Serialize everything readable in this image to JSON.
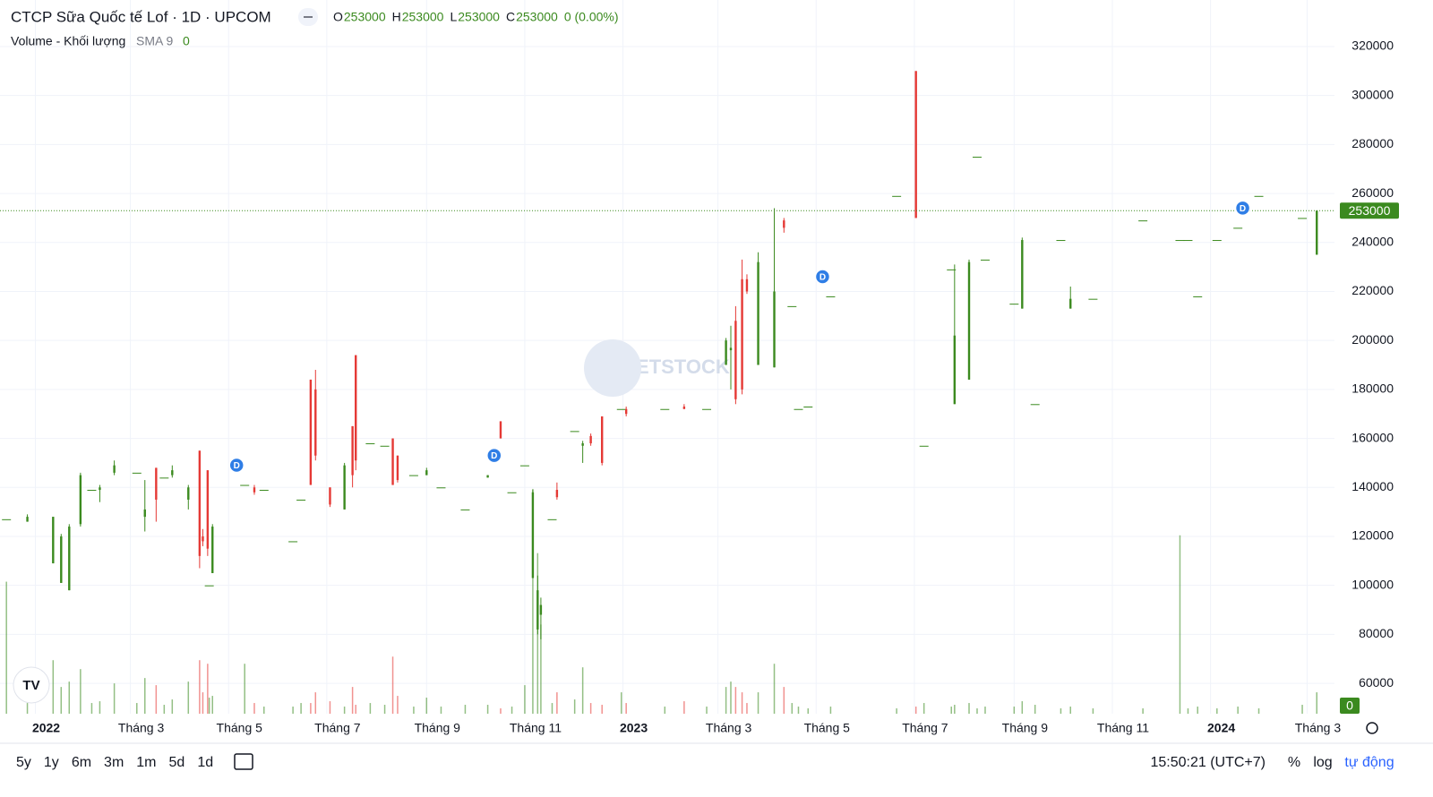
{
  "chart_data": {
    "type": "candlestick",
    "title": "CTCP Sữa Quốc tế Lof · 1D · UPCOM",
    "ohlc_legend": [
      {
        "label": "O",
        "value": 253000
      },
      {
        "label": "H",
        "value": 253000
      },
      {
        "label": "L",
        "value": 253000
      },
      {
        "label": "C",
        "value": 253000
      }
    ],
    "change": "0 (0.00%)",
    "volume_title": "Volume - Khối lượng",
    "sma_label": "SMA 9",
    "sma_value": 0,
    "last_price": 253000,
    "last_volume": 0,
    "watermark": "VIETSTOCK",
    "up_color": "#3b8a1f",
    "down_color": "#e53935",
    "xlim": [
      "2021-12-10",
      "2024-03-18"
    ],
    "ylim": [
      47600,
      339000
    ],
    "volume_lim": [
      0,
      4000
    ],
    "yticks": [
      60000,
      80000,
      100000,
      120000,
      140000,
      160000,
      180000,
      200000,
      220000,
      240000,
      260000,
      280000,
      300000,
      320000
    ],
    "xticks": [
      {
        "value": "2022-01-01",
        "label": "2022"
      },
      {
        "value": "2022-03-01",
        "label": "Tháng 3"
      },
      {
        "value": "2022-05-01",
        "label": "Tháng 5"
      },
      {
        "value": "2022-07-01",
        "label": "Tháng 7"
      },
      {
        "value": "2022-09-01",
        "label": "Tháng 9"
      },
      {
        "value": "2022-11-01",
        "label": "Tháng 11"
      },
      {
        "value": "2023-01-01",
        "label": "2023"
      },
      {
        "value": "2023-03-01",
        "label": "Tháng 3"
      },
      {
        "value": "2023-05-01",
        "label": "Tháng 5"
      },
      {
        "value": "2023-07-01",
        "label": "Tháng 7"
      },
      {
        "value": "2023-09-01",
        "label": "Tháng 9"
      },
      {
        "value": "2023-11-01",
        "label": "Tháng 11"
      },
      {
        "value": "2024-01-01",
        "label": "2024"
      },
      {
        "value": "2024-03-01",
        "label": "Tháng 3"
      }
    ],
    "markers": {
      "label": "D",
      "x": [
        "2022-05-06",
        "2022-10-13",
        "2023-05-05",
        "2024-01-21"
      ]
    },
    "x": [
      "2021-12-14",
      "2021-12-27",
      "2022-01-12",
      "2022-01-17",
      "2022-01-22",
      "2022-01-29",
      "2022-02-05",
      "2022-02-10",
      "2022-02-19",
      "2022-03-05",
      "2022-03-10",
      "2022-03-17",
      "2022-03-22",
      "2022-03-27",
      "2022-04-06",
      "2022-04-13",
      "2022-04-15",
      "2022-04-18",
      "2022-04-19",
      "2022-04-21",
      "2022-05-11",
      "2022-05-17",
      "2022-05-23",
      "2022-06-10",
      "2022-06-15",
      "2022-06-21",
      "2022-06-24",
      "2022-07-03",
      "2022-07-12",
      "2022-07-17",
      "2022-07-19",
      "2022-07-28",
      "2022-08-06",
      "2022-08-11",
      "2022-08-14",
      "2022-08-24",
      "2022-09-01",
      "2022-09-10",
      "2022-09-25",
      "2022-10-09",
      "2022-10-17",
      "2022-10-24",
      "2022-11-01",
      "2022-11-06",
      "2022-11-09",
      "2022-11-11",
      "2022-11-18",
      "2022-11-21",
      "2022-12-02",
      "2022-12-07",
      "2022-12-12",
      "2022-12-19",
      "2022-12-31",
      "2023-01-03",
      "2023-01-27",
      "2023-02-08",
      "2023-02-22",
      "2023-03-06",
      "2023-03-09",
      "2023-03-12",
      "2023-03-16",
      "2023-03-19",
      "2023-03-26",
      "2023-04-05",
      "2023-04-11",
      "2023-04-16",
      "2023-04-20",
      "2023-04-26",
      "2023-05-10",
      "2023-06-20",
      "2023-07-02",
      "2023-07-07",
      "2023-07-24",
      "2023-07-26",
      "2023-08-04",
      "2023-08-09",
      "2023-08-14",
      "2023-09-01",
      "2023-09-06",
      "2023-09-14",
      "2023-09-30",
      "2023-10-06",
      "2023-10-20",
      "2023-11-20",
      "2023-12-13",
      "2023-12-18",
      "2023-12-24",
      "2024-01-05",
      "2024-01-18",
      "2024-01-31",
      "2024-02-27",
      "2024-03-07"
    ],
    "open": [
      127000,
      126000,
      109000,
      101000,
      98000,
      125000,
      139000,
      139000,
      146000,
      146000,
      128000,
      148000,
      144000,
      145000,
      135000,
      155000,
      120000,
      147000,
      100000,
      105000,
      141000,
      140000,
      139000,
      118000,
      135000,
      184000,
      180000,
      140000,
      131000,
      165000,
      194000,
      158000,
      157000,
      160000,
      153000,
      145000,
      145000,
      140000,
      131000,
      144000,
      167000,
      138000,
      149000,
      103000,
      82000,
      88000,
      127000,
      139000,
      163000,
      157000,
      161000,
      169000,
      172000,
      172000,
      172000,
      173000,
      172000,
      190000,
      196000,
      208000,
      225000,
      225000,
      190000,
      189000,
      249000,
      214000,
      172000,
      173000,
      218000,
      259000,
      310000,
      157000,
      229000,
      174000,
      184000,
      275000,
      233000,
      215000,
      213000,
      174000,
      241000,
      213000,
      217000,
      249000,
      241000,
      241000,
      218000,
      241000,
      246000,
      259000,
      250000,
      235000
    ],
    "high": [
      127000,
      129000,
      128000,
      121000,
      125000,
      146000,
      139000,
      141000,
      151000,
      146000,
      143000,
      148000,
      144000,
      149000,
      141000,
      155000,
      123000,
      147000,
      100000,
      125000,
      141000,
      141000,
      139000,
      118000,
      135000,
      184000,
      188000,
      140000,
      150000,
      165000,
      194000,
      158000,
      157000,
      160000,
      153000,
      145000,
      148000,
      140000,
      131000,
      145000,
      167000,
      138000,
      149000,
      139000,
      104000,
      95000,
      127000,
      142000,
      163000,
      159000,
      162000,
      169000,
      172000,
      173000,
      172000,
      174000,
      172000,
      201000,
      206000,
      214000,
      233000,
      227000,
      236000,
      254000,
      250000,
      214000,
      172000,
      173000,
      218000,
      259000,
      310000,
      157000,
      229000,
      231000,
      233000,
      275000,
      233000,
      215000,
      242000,
      174000,
      241000,
      222000,
      217000,
      249000,
      241000,
      241000,
      218000,
      241000,
      246000,
      259000,
      250000,
      253000
    ],
    "low": [
      127000,
      126000,
      109000,
      101000,
      98000,
      124000,
      139000,
      134000,
      145000,
      146000,
      122000,
      126000,
      144000,
      144000,
      131000,
      107000,
      116000,
      112000,
      100000,
      105000,
      141000,
      137000,
      139000,
      118000,
      135000,
      141000,
      151000,
      132000,
      131000,
      140000,
      147000,
      158000,
      157000,
      141000,
      142000,
      145000,
      145000,
      140000,
      131000,
      144000,
      160000,
      138000,
      149000,
      103000,
      80000,
      78000,
      127000,
      135000,
      163000,
      150000,
      157000,
      149000,
      172000,
      169000,
      172000,
      172000,
      172000,
      190000,
      180000,
      174000,
      178000,
      219000,
      190000,
      189000,
      244000,
      214000,
      172000,
      173000,
      218000,
      259000,
      250000,
      157000,
      229000,
      174000,
      184000,
      275000,
      233000,
      215000,
      213000,
      174000,
      241000,
      213000,
      217000,
      249000,
      241000,
      241000,
      218000,
      241000,
      246000,
      259000,
      250000,
      235000
    ],
    "close": [
      127000,
      128000,
      128000,
      120000,
      124000,
      145000,
      139000,
      140000,
      149000,
      146000,
      131000,
      135000,
      144000,
      147000,
      140000,
      112000,
      118000,
      115000,
      100000,
      124000,
      141000,
      138000,
      139000,
      118000,
      135000,
      141000,
      153000,
      133000,
      149000,
      145000,
      151000,
      158000,
      157000,
      141000,
      143000,
      145000,
      147000,
      140000,
      131000,
      145000,
      160000,
      138000,
      149000,
      138000,
      98000,
      92000,
      127000,
      136000,
      163000,
      158000,
      158000,
      150000,
      172000,
      170000,
      172000,
      172000,
      172000,
      200000,
      197000,
      176000,
      180000,
      220000,
      232000,
      220000,
      246000,
      214000,
      172000,
      173000,
      218000,
      259000,
      250000,
      157000,
      229000,
      202000,
      232000,
      275000,
      233000,
      215000,
      241000,
      174000,
      241000,
      217000,
      217000,
      249000,
      241000,
      241000,
      218000,
      241000,
      246000,
      259000,
      250000,
      253000
    ],
    "volume": [
      740,
      60,
      300,
      150,
      180,
      250,
      60,
      70,
      170,
      60,
      200,
      160,
      50,
      80,
      180,
      300,
      120,
      280,
      90,
      100,
      280,
      60,
      40,
      40,
      60,
      60,
      120,
      70,
      40,
      150,
      50,
      60,
      50,
      320,
      100,
      40,
      90,
      40,
      50,
      50,
      30,
      40,
      160,
      1260,
      900,
      500,
      60,
      120,
      80,
      260,
      60,
      50,
      120,
      60,
      40,
      70,
      40,
      150,
      180,
      150,
      120,
      60,
      120,
      280,
      150,
      60,
      40,
      30,
      40,
      30,
      40,
      60,
      40,
      50,
      60,
      30,
      40,
      40,
      70,
      50,
      30,
      40,
      30,
      30,
      1000,
      30,
      40,
      30,
      40,
      30,
      50,
      120
    ],
    "range_buttons": [
      "5y",
      "1y",
      "6m",
      "3m",
      "1m",
      "5d",
      "1d"
    ],
    "clock": "15:50:21 (UTC+7)",
    "percent_button": "%",
    "log_button": "log",
    "auto_button": "tự động"
  }
}
